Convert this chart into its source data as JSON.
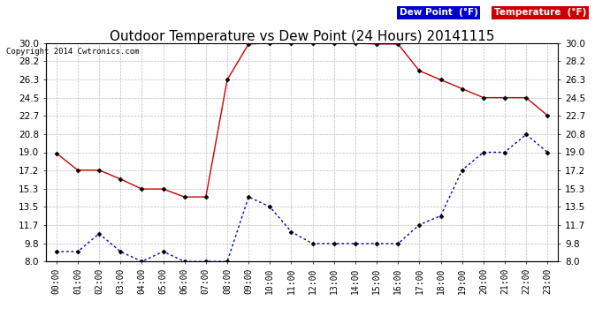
{
  "title": "Outdoor Temperature vs Dew Point (24 Hours) 20141115",
  "copyright": "Copyright 2014 Cwtronics.com",
  "hours": [
    "00:00",
    "01:00",
    "02:00",
    "03:00",
    "04:00",
    "05:00",
    "06:00",
    "07:00",
    "08:00",
    "09:00",
    "10:00",
    "11:00",
    "12:00",
    "13:00",
    "14:00",
    "15:00",
    "16:00",
    "17:00",
    "18:00",
    "19:00",
    "20:00",
    "21:00",
    "22:00",
    "23:00"
  ],
  "temperature": [
    18.9,
    17.2,
    17.2,
    16.3,
    15.3,
    15.3,
    14.5,
    14.5,
    26.3,
    29.9,
    30.0,
    30.0,
    30.0,
    30.0,
    30.0,
    29.9,
    29.9,
    27.2,
    26.3,
    25.4,
    24.5,
    24.5,
    24.5,
    22.7
  ],
  "dew_point": [
    9.0,
    9.0,
    10.8,
    9.0,
    8.0,
    9.0,
    8.0,
    8.0,
    8.0,
    14.5,
    13.5,
    11.0,
    9.8,
    9.8,
    9.8,
    9.8,
    9.8,
    11.7,
    12.6,
    17.2,
    19.0,
    19.0,
    20.8,
    19.0
  ],
  "ylim": [
    8.0,
    30.0
  ],
  "yticks": [
    8.0,
    9.8,
    11.7,
    13.5,
    15.3,
    17.2,
    19.0,
    20.8,
    22.7,
    24.5,
    26.3,
    28.2,
    30.0
  ],
  "temp_color": "#cc0000",
  "dew_color": "#0000cc",
  "bg_color": "#ffffff",
  "grid_color": "#bbbbbb",
  "title_fontsize": 11,
  "legend_dew_label": "Dew Point  (°F)",
  "legend_temp_label": "Temperature  (°F)"
}
